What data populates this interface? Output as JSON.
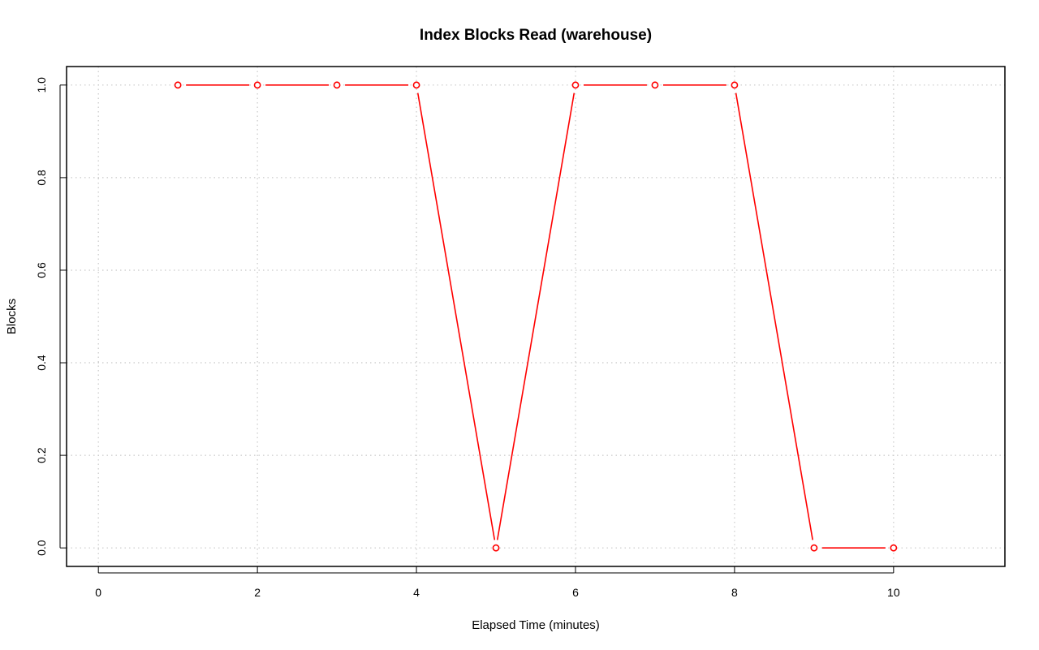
{
  "chart_data": {
    "type": "line",
    "title": "Index Blocks Read (warehouse)",
    "xlabel": "Elapsed Time (minutes)",
    "ylabel": "Blocks",
    "xlim": [
      -0.4,
      11.4
    ],
    "ylim": [
      -0.04,
      1.04
    ],
    "xticks": [
      0,
      2,
      4,
      6,
      8,
      10
    ],
    "xtick_labels": [
      "0",
      "2",
      "4",
      "6",
      "8",
      "10"
    ],
    "yticks": [
      0,
      0.2,
      0.4,
      0.6,
      0.8,
      1.0
    ],
    "ytick_labels": [
      "0.0",
      "0.2",
      "0.4",
      "0.6",
      "0.8",
      "1.0"
    ],
    "grid": true,
    "series": [
      {
        "color": "#ff0000",
        "marker": "open-circle",
        "x": [
          1,
          2,
          3,
          4,
          5,
          6,
          7,
          8,
          9,
          10
        ],
        "values": [
          1,
          1,
          1,
          1,
          0,
          1,
          1,
          1,
          0,
          0
        ]
      }
    ]
  }
}
